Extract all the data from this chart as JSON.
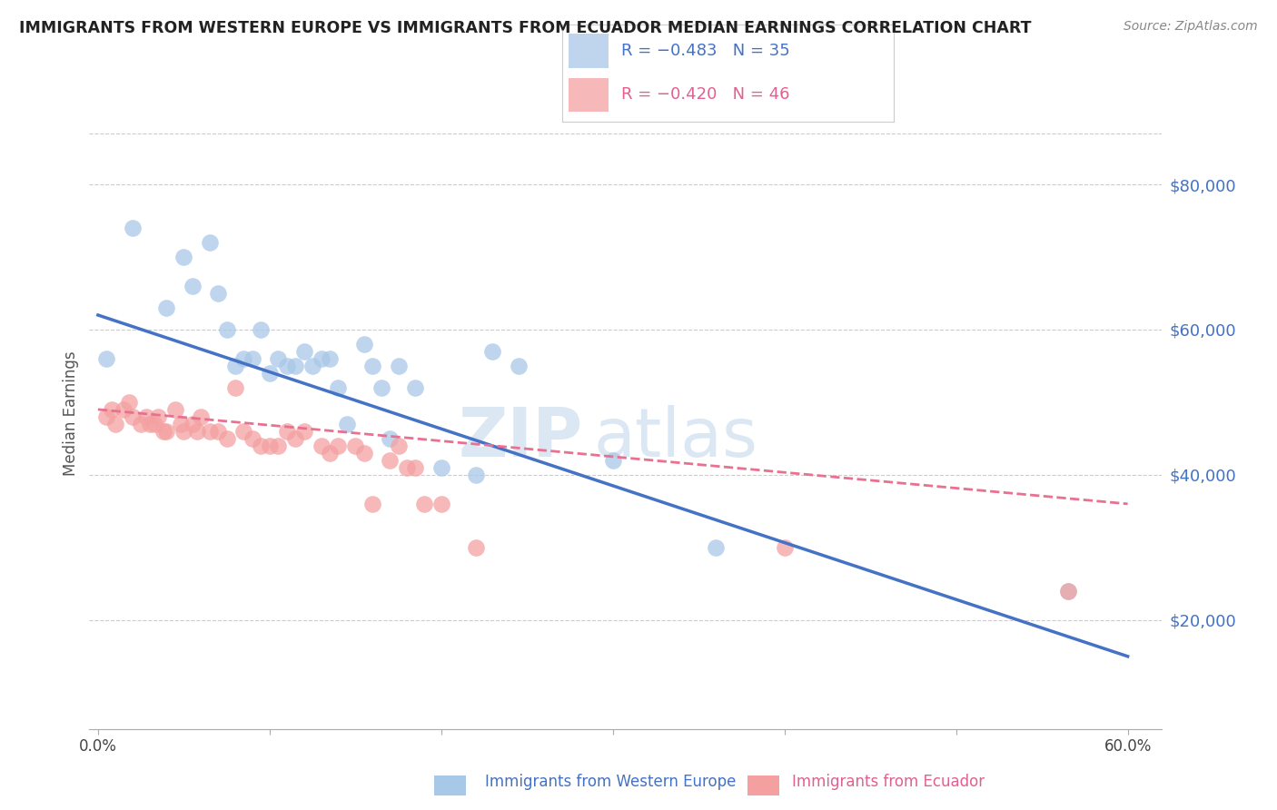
{
  "title": "IMMIGRANTS FROM WESTERN EUROPE VS IMMIGRANTS FROM ECUADOR MEDIAN EARNINGS CORRELATION CHART",
  "source": "Source: ZipAtlas.com",
  "ylabel": "Median Earnings",
  "y_ticks": [
    20000,
    40000,
    60000,
    80000
  ],
  "y_tick_labels": [
    "$20,000",
    "$40,000",
    "$60,000",
    "$80,000"
  ],
  "ylim": [
    5000,
    92000
  ],
  "xlim": [
    -0.005,
    0.62
  ],
  "legend_r1": "R = −0.483",
  "legend_n1": "N = 35",
  "legend_r2": "R = −0.420",
  "legend_n2": "N = 46",
  "blue_color": "#a8c8e8",
  "pink_color": "#f4a0a0",
  "line_blue": "#4472c4",
  "line_pink": "#e87090",
  "watermark_zip": "ZIP",
  "watermark_atlas": "atlas",
  "blue_x": [
    0.005,
    0.02,
    0.04,
    0.05,
    0.055,
    0.065,
    0.07,
    0.075,
    0.08,
    0.085,
    0.09,
    0.095,
    0.1,
    0.105,
    0.11,
    0.115,
    0.12,
    0.125,
    0.13,
    0.135,
    0.14,
    0.145,
    0.155,
    0.16,
    0.165,
    0.17,
    0.175,
    0.185,
    0.2,
    0.22,
    0.23,
    0.245,
    0.3,
    0.36,
    0.565
  ],
  "blue_y": [
    56000,
    74000,
    63000,
    70000,
    66000,
    72000,
    65000,
    60000,
    55000,
    56000,
    56000,
    60000,
    54000,
    56000,
    55000,
    55000,
    57000,
    55000,
    56000,
    56000,
    52000,
    47000,
    58000,
    55000,
    52000,
    45000,
    55000,
    52000,
    41000,
    40000,
    57000,
    55000,
    42000,
    30000,
    24000
  ],
  "pink_x": [
    0.005,
    0.008,
    0.01,
    0.015,
    0.018,
    0.02,
    0.025,
    0.028,
    0.03,
    0.033,
    0.035,
    0.038,
    0.04,
    0.045,
    0.048,
    0.05,
    0.055,
    0.058,
    0.06,
    0.065,
    0.07,
    0.075,
    0.08,
    0.085,
    0.09,
    0.095,
    0.1,
    0.105,
    0.11,
    0.115,
    0.12,
    0.13,
    0.135,
    0.14,
    0.15,
    0.155,
    0.16,
    0.17,
    0.175,
    0.18,
    0.185,
    0.19,
    0.2,
    0.22,
    0.4,
    0.565
  ],
  "pink_y": [
    48000,
    49000,
    47000,
    49000,
    50000,
    48000,
    47000,
    48000,
    47000,
    47000,
    48000,
    46000,
    46000,
    49000,
    47000,
    46000,
    47000,
    46000,
    48000,
    46000,
    46000,
    45000,
    52000,
    46000,
    45000,
    44000,
    44000,
    44000,
    46000,
    45000,
    46000,
    44000,
    43000,
    44000,
    44000,
    43000,
    36000,
    42000,
    44000,
    41000,
    41000,
    36000,
    36000,
    30000,
    30000,
    24000
  ],
  "blue_line_x0": 0.0,
  "blue_line_y0": 62000,
  "blue_line_x1": 0.6,
  "blue_line_y1": 15000,
  "pink_line_x0": 0.0,
  "pink_line_y0": 49000,
  "pink_line_x1": 0.6,
  "pink_line_y1": 36000
}
